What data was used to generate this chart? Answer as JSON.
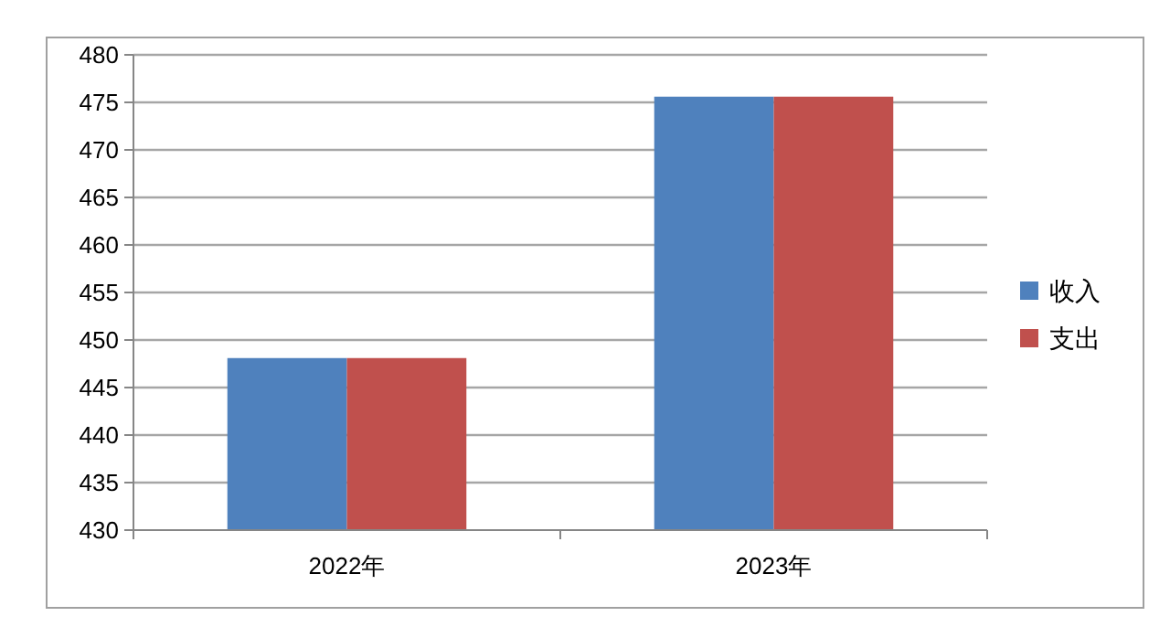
{
  "chart_data": {
    "type": "bar",
    "categories": [
      "2022年",
      "2023年"
    ],
    "series": [
      {
        "name": "收入",
        "color": "#4f81bd",
        "values": [
          448.1,
          475.6
        ]
      },
      {
        "name": "支出",
        "color": "#c0504d",
        "values": [
          448.1,
          475.6
        ]
      }
    ],
    "ylim": [
      430,
      480
    ],
    "yticks": [
      430,
      435,
      440,
      445,
      450,
      455,
      460,
      465,
      470,
      475,
      480
    ],
    "grid": "y",
    "legend": "right"
  }
}
